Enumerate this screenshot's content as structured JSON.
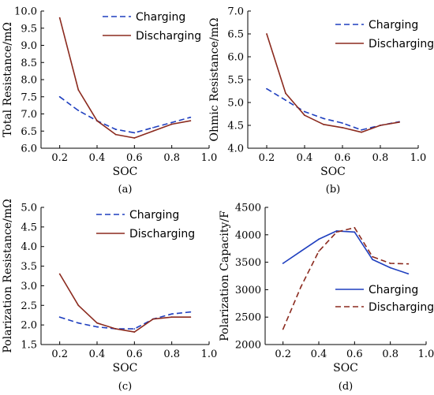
{
  "colors": {
    "charging_red": "#1f3fbf",
    "discharging_red": "#8b2a1e",
    "charging_blue_d": "#1f3fbf",
    "discharging_dashed_d": "#8b2a1e"
  },
  "chart_data": [
    {
      "type": "line",
      "panel_label": "(a)",
      "xlabel": "SOC",
      "ylabel": "Total Resistance/mΩ",
      "xlim": [
        0.1,
        1.0
      ],
      "ylim": [
        6.0,
        10.0
      ],
      "xticks": [
        "0.2",
        "0.4",
        "0.6",
        "0.8",
        "1.0"
      ],
      "yticks": [
        "6.0",
        "6.5",
        "7.0",
        "7.5",
        "8.0",
        "8.5",
        "9.0",
        "9.5",
        "10.0"
      ],
      "legend": "top-right",
      "series": [
        {
          "name": "Charging",
          "style": "dashed",
          "color": "#1f3fbf",
          "x": [
            0.2,
            0.3,
            0.4,
            0.5,
            0.6,
            0.7,
            0.8,
            0.9
          ],
          "y": [
            7.5,
            7.1,
            6.8,
            6.55,
            6.45,
            6.6,
            6.75,
            6.9
          ]
        },
        {
          "name": "Discharging",
          "style": "solid",
          "color": "#8b2a1e",
          "x": [
            0.2,
            0.3,
            0.4,
            0.5,
            0.6,
            0.7,
            0.8,
            0.9
          ],
          "y": [
            9.8,
            7.7,
            6.8,
            6.4,
            6.3,
            6.5,
            6.7,
            6.8
          ]
        }
      ]
    },
    {
      "type": "line",
      "panel_label": "(b)",
      "xlabel": "SOC",
      "ylabel": "Ohmic Resistance/mΩ",
      "xlim": [
        0.1,
        1.0
      ],
      "ylim": [
        4.0,
        7.0
      ],
      "xticks": [
        "0.2",
        "0.4",
        "0.6",
        "0.8",
        "1.0"
      ],
      "yticks": [
        "4.0",
        "4.5",
        "5.0",
        "5.5",
        "6.0",
        "6.5",
        "7.0"
      ],
      "legend": "top-right",
      "series": [
        {
          "name": "Charging",
          "style": "dashed",
          "color": "#1f3fbf",
          "x": [
            0.2,
            0.3,
            0.4,
            0.5,
            0.6,
            0.7,
            0.8,
            0.9
          ],
          "y": [
            5.3,
            5.05,
            4.8,
            4.65,
            4.55,
            4.4,
            4.5,
            4.58
          ]
        },
        {
          "name": "Discharging",
          "style": "solid",
          "color": "#8b2a1e",
          "x": [
            0.2,
            0.3,
            0.4,
            0.5,
            0.6,
            0.7,
            0.8,
            0.9
          ],
          "y": [
            6.5,
            5.2,
            4.72,
            4.52,
            4.45,
            4.35,
            4.5,
            4.57
          ]
        }
      ]
    },
    {
      "type": "line",
      "panel_label": "(c)",
      "xlabel": "SOC",
      "ylabel": "Polarization Resistance/mΩ",
      "xlim": [
        0.1,
        1.0
      ],
      "ylim": [
        1.5,
        5.0
      ],
      "xticks": [
        "0.2",
        "0.4",
        "0.6",
        "0.8",
        "1.0"
      ],
      "yticks": [
        "1.5",
        "2.0",
        "2.5",
        "3.0",
        "3.5",
        "4.0",
        "4.5",
        "5.0"
      ],
      "legend": "top-right",
      "series": [
        {
          "name": "Charging",
          "style": "dashed",
          "color": "#1f3fbf",
          "x": [
            0.2,
            0.3,
            0.4,
            0.5,
            0.6,
            0.7,
            0.8,
            0.9
          ],
          "y": [
            2.2,
            2.05,
            1.95,
            1.9,
            1.9,
            2.15,
            2.28,
            2.33
          ]
        },
        {
          "name": "Discharging",
          "style": "solid",
          "color": "#8b2a1e",
          "x": [
            0.2,
            0.3,
            0.4,
            0.5,
            0.6,
            0.7,
            0.8,
            0.9
          ],
          "y": [
            3.3,
            2.5,
            2.05,
            1.9,
            1.82,
            2.15,
            2.2,
            2.2
          ]
        }
      ]
    },
    {
      "type": "line",
      "panel_label": "(d)",
      "xlabel": "SOC",
      "ylabel": "Polarization Capacity/F",
      "xlim": [
        0.1,
        1.0
      ],
      "ylim": [
        2000,
        4500
      ],
      "xticks": [
        "0.2",
        "0.4",
        "0.6",
        "0.8",
        "1.0"
      ],
      "yticks": [
        "2000",
        "2500",
        "3000",
        "3500",
        "4000",
        "4500"
      ],
      "legend": "bottom-right",
      "series": [
        {
          "name": "Charging",
          "style": "solid",
          "color": "#1f3fbf",
          "x": [
            0.2,
            0.3,
            0.4,
            0.5,
            0.6,
            0.7,
            0.8,
            0.9
          ],
          "y": [
            3480,
            3700,
            3920,
            4070,
            4050,
            3550,
            3400,
            3290
          ]
        },
        {
          "name": "Discharging",
          "style": "dashed",
          "color": "#8b2a1e",
          "x": [
            0.2,
            0.3,
            0.4,
            0.5,
            0.6,
            0.7,
            0.8,
            0.9
          ],
          "y": [
            2280,
            3050,
            3700,
            4050,
            4130,
            3600,
            3480,
            3470
          ]
        }
      ]
    }
  ]
}
